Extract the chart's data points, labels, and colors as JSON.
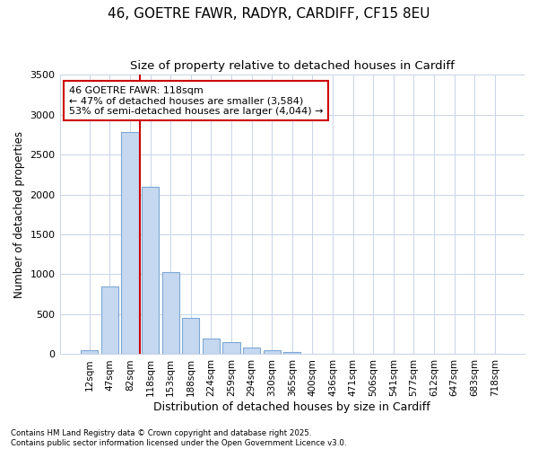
{
  "title_line1": "46, GOETRE FAWR, RADYR, CARDIFF, CF15 8EU",
  "title_line2": "Size of property relative to detached houses in Cardiff",
  "xlabel": "Distribution of detached houses by size in Cardiff",
  "ylabel": "Number of detached properties",
  "categories": [
    "12sqm",
    "47sqm",
    "82sqm",
    "118sqm",
    "153sqm",
    "188sqm",
    "224sqm",
    "259sqm",
    "294sqm",
    "330sqm",
    "365sqm",
    "400sqm",
    "436sqm",
    "471sqm",
    "506sqm",
    "541sqm",
    "577sqm",
    "612sqm",
    "647sqm",
    "683sqm",
    "718sqm"
  ],
  "values": [
    50,
    850,
    2780,
    2100,
    1030,
    460,
    200,
    150,
    80,
    50,
    30,
    0,
    0,
    0,
    0,
    0,
    0,
    0,
    0,
    0,
    0
  ],
  "bar_color": "#c5d8f0",
  "bar_edge_color": "#7da8d4",
  "vline_color": "#cc0000",
  "vline_pos": 2.5,
  "annotation_text": "46 GOETRE FAWR: 118sqm\n← 47% of detached houses are smaller (3,584)\n53% of semi-detached houses are larger (4,044) →",
  "annotation_box_facecolor": "#ffffff",
  "annotation_box_edgecolor": "#cc0000",
  "ylim": [
    0,
    3500
  ],
  "yticks": [
    0,
    500,
    1000,
    1500,
    2000,
    2500,
    3000,
    3500
  ],
  "grid_color": "#c8d4e8",
  "bg_color": "#ffffff",
  "title_fontsize": 11,
  "subtitle_fontsize": 10,
  "footnote": "Contains HM Land Registry data © Crown copyright and database right 2025.\nContains public sector information licensed under the Open Government Licence v3.0."
}
